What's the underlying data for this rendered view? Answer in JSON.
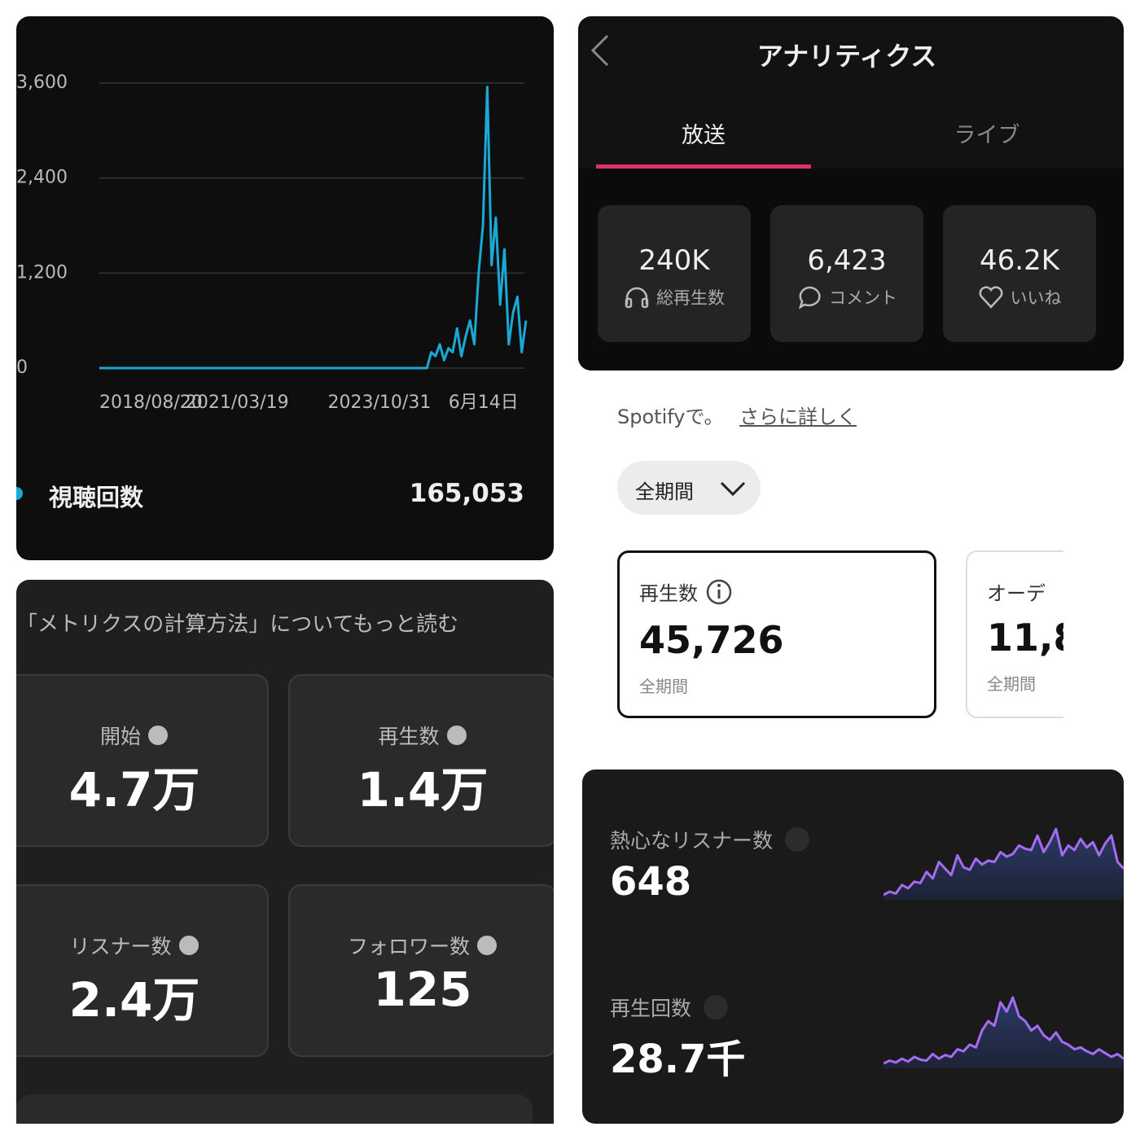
{
  "chart_data": [
    {
      "type": "line",
      "series": [
        {
          "name": "視聴回数",
          "color": "#1aa9d6",
          "values": [
            0,
            0,
            0,
            0,
            0,
            0,
            0,
            0,
            0,
            0,
            0,
            0,
            0,
            0,
            0,
            0,
            0,
            0,
            0,
            0,
            0,
            0,
            0,
            0,
            0,
            0,
            0,
            0,
            0,
            0,
            0,
            0,
            0,
            0,
            0,
            0,
            0,
            0,
            0,
            0,
            0,
            0,
            0,
            0,
            0,
            0,
            0,
            0,
            0,
            0,
            0,
            0,
            0,
            0,
            0,
            0,
            0,
            0,
            0,
            0,
            0,
            0,
            0,
            0,
            0,
            0,
            0,
            0,
            0,
            0,
            0,
            0,
            0,
            0,
            0,
            0,
            0,
            200,
            150,
            300,
            100,
            250,
            200,
            500,
            150,
            400,
            600,
            300,
            1200,
            1800,
            3550,
            1300,
            1900,
            800,
            1500,
            300,
            700,
            900,
            200,
            600
          ]
        }
      ],
      "ylim": [
        0,
        3600
      ],
      "yticks": [
        0,
        {
          "value": 1200,
          "label": "1,200"
        },
        {
          "value": 2400,
          "label": "2,400"
        },
        {
          "value": 3600,
          "label": "3,600"
        }
      ],
      "xticks": [
        {
          "value": 0,
          "label": "2018/08/20"
        },
        {
          "value": 20,
          "label": "2021/03/19"
        },
        {
          "value": 53,
          "label": "2023/10/31"
        },
        {
          "value": 81,
          "label": "6月14日"
        }
      ],
      "grid": true,
      "total": "165,053"
    },
    {
      "type": "sparkline",
      "title": "熱心なリスナー数",
      "total": "648",
      "color": "#a46cf5",
      "values": [
        20,
        25,
        22,
        35,
        30,
        40,
        38,
        55,
        45,
        70,
        60,
        50,
        80,
        62,
        58,
        75,
        66,
        72,
        70,
        85,
        78,
        82,
        95,
        90,
        88,
        110,
        85,
        100,
        120,
        80,
        95,
        88,
        105,
        92,
        100,
        80,
        98,
        110,
        70,
        60
      ]
    },
    {
      "type": "sparkline",
      "title": "再生回数",
      "total": "28.7千",
      "color": "#a46cf5",
      "values": [
        5,
        8,
        6,
        10,
        7,
        12,
        9,
        8,
        15,
        10,
        14,
        12,
        20,
        18,
        25,
        22,
        40,
        50,
        45,
        70,
        60,
        75,
        55,
        50,
        40,
        45,
        35,
        30,
        38,
        28,
        25,
        20,
        22,
        18,
        15,
        20,
        16,
        12,
        15,
        10
      ]
    }
  ],
  "spotify": {
    "title": "アナリティクス",
    "tabs": [
      "放送",
      "ライブ"
    ],
    "stats": [
      {
        "value": "240K",
        "label": "総再生数"
      },
      {
        "value": "6,423",
        "label": "コメント"
      },
      {
        "value": "46.2K",
        "label": "いいね"
      }
    ],
    "note": "Spotifyで。",
    "link": "さらに詳しく",
    "filter": "全期間",
    "cards": [
      {
        "label": "再生数",
        "value": "45,726",
        "period": "全期間"
      },
      {
        "label": "オーデ",
        "value": "11,8",
        "period": "全期間"
      }
    ]
  },
  "youtube": {
    "note": "「メトリクスの計算方法」についてもっと読む",
    "cards": [
      {
        "label": "開始",
        "value": "4.7万"
      },
      {
        "label": "再生数",
        "value": "1.4万"
      },
      {
        "label": "リスナー数",
        "value": "2.4万"
      },
      {
        "label": "フォロワー数",
        "value": "125"
      }
    ]
  }
}
